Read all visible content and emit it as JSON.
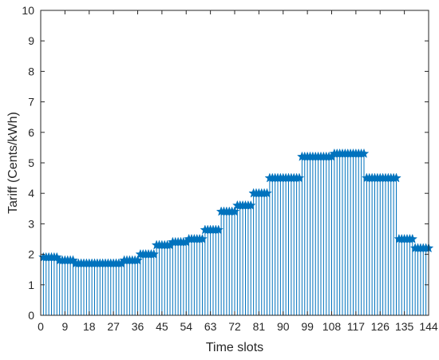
{
  "chart_data": {
    "type": "stem",
    "title": "",
    "xlabel": "Time slots",
    "ylabel": "Tariff (Cents/kWh)",
    "xlim": [
      0,
      144
    ],
    "ylim": [
      0,
      10
    ],
    "xticks": [
      0,
      9,
      18,
      27,
      36,
      45,
      54,
      63,
      72,
      81,
      90,
      99,
      108,
      117,
      126,
      135,
      144
    ],
    "yticks": [
      0,
      1,
      2,
      3,
      4,
      5,
      6,
      7,
      8,
      9,
      10
    ],
    "marker": "star",
    "color": "#0072BD",
    "grid": false,
    "segments": [
      {
        "x_start": 1,
        "x_end": 6,
        "value": 1.9
      },
      {
        "x_start": 7,
        "x_end": 12,
        "value": 1.8
      },
      {
        "x_start": 13,
        "x_end": 30,
        "value": 1.7
      },
      {
        "x_start": 31,
        "x_end": 36,
        "value": 1.8
      },
      {
        "x_start": 37,
        "x_end": 42,
        "value": 2.0
      },
      {
        "x_start": 43,
        "x_end": 48,
        "value": 2.3
      },
      {
        "x_start": 49,
        "x_end": 54,
        "value": 2.4
      },
      {
        "x_start": 55,
        "x_end": 60,
        "value": 2.5
      },
      {
        "x_start": 61,
        "x_end": 66,
        "value": 2.8
      },
      {
        "x_start": 67,
        "x_end": 72,
        "value": 3.4
      },
      {
        "x_start": 73,
        "x_end": 78,
        "value": 3.6
      },
      {
        "x_start": 79,
        "x_end": 84,
        "value": 4.0
      },
      {
        "x_start": 85,
        "x_end": 96,
        "value": 4.5
      },
      {
        "x_start": 97,
        "x_end": 108,
        "value": 5.2
      },
      {
        "x_start": 109,
        "x_end": 120,
        "value": 5.3
      },
      {
        "x_start": 121,
        "x_end": 132,
        "value": 4.5
      },
      {
        "x_start": 133,
        "x_end": 138,
        "value": 2.5
      },
      {
        "x_start": 139,
        "x_end": 144,
        "value": 2.2
      }
    ]
  }
}
